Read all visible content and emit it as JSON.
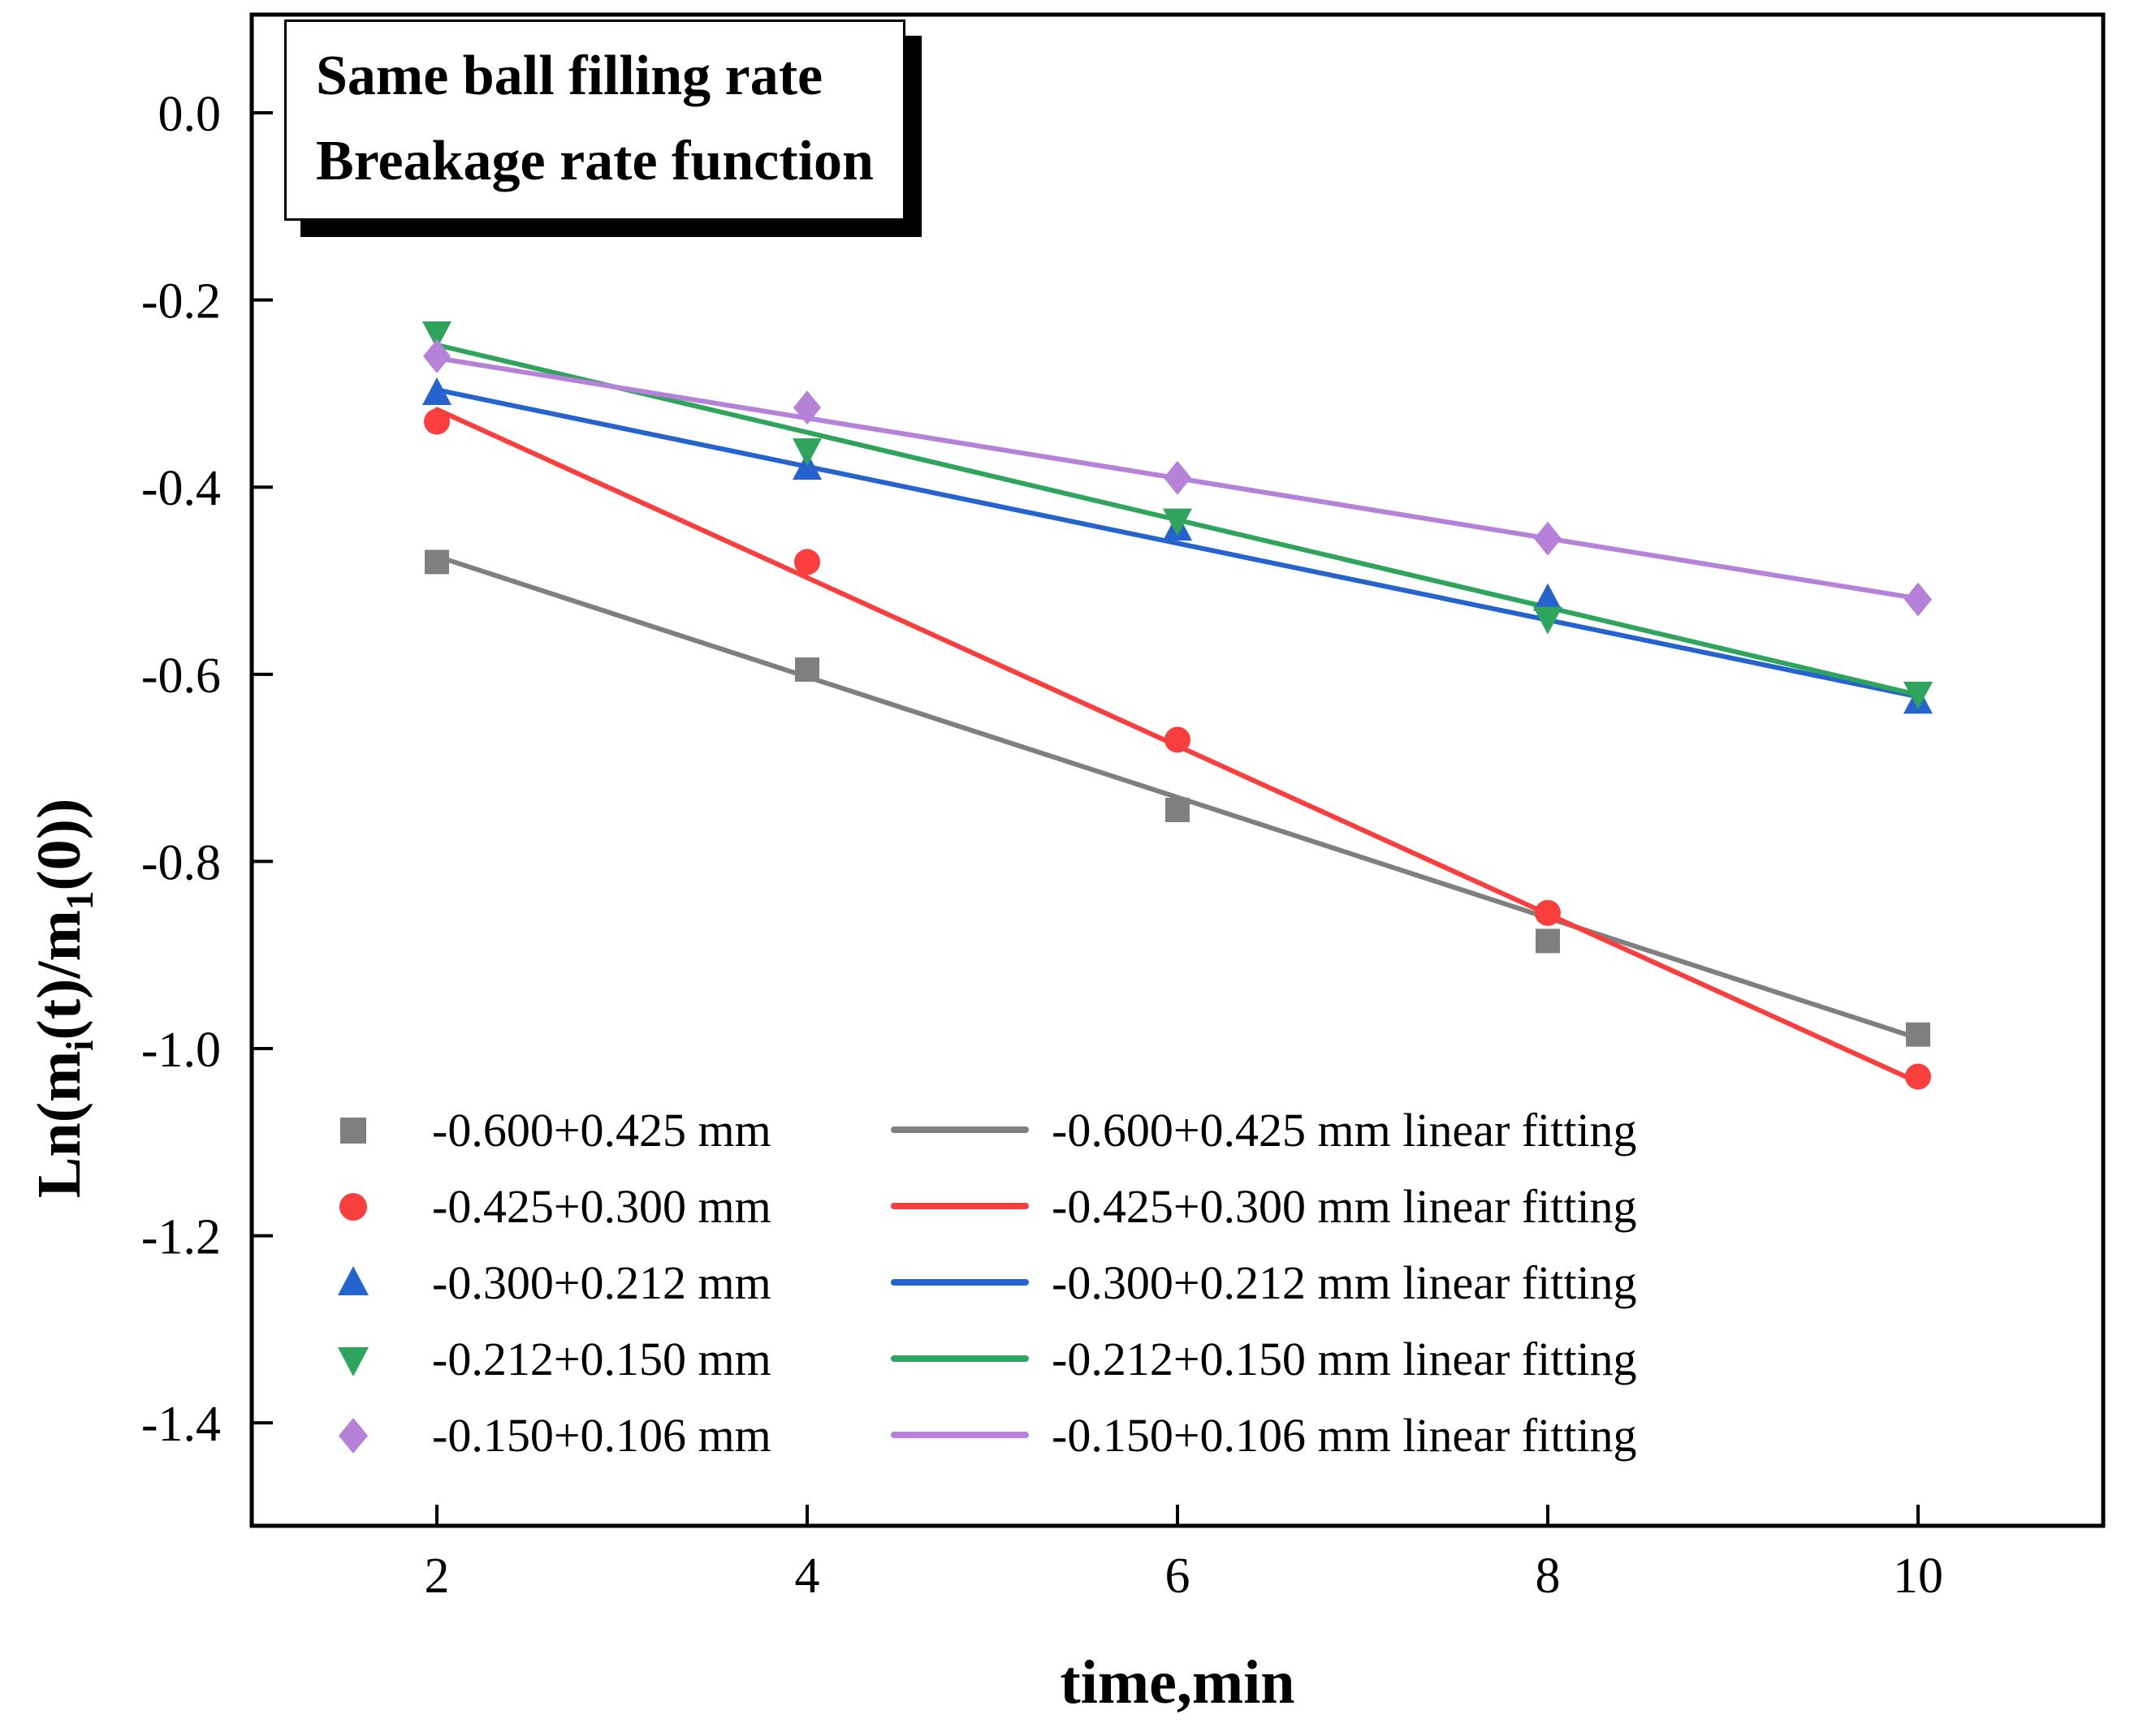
{
  "title_box": {
    "line1": "Same ball filling rate",
    "line2": "Breakage rate function"
  },
  "axes": {
    "x_label": "time,min",
    "y_label_parts": {
      "p1": "Ln(m",
      "s1": "i",
      "p2": "(t)/m",
      "s2": "1",
      "p3": "(0))"
    },
    "xlim": [
      1,
      11
    ],
    "ylim": [
      -1.51,
      0.105
    ],
    "x_ticks": [
      {
        "value": 2,
        "label": "2"
      },
      {
        "value": 4,
        "label": "4"
      },
      {
        "value": 6,
        "label": "6"
      },
      {
        "value": 8,
        "label": "8"
      },
      {
        "value": 10,
        "label": "10"
      }
    ],
    "y_ticks": [
      {
        "value": 0.0,
        "label": "0.0"
      },
      {
        "value": -0.2,
        "label": "-0.2"
      },
      {
        "value": -0.4,
        "label": "-0.4"
      },
      {
        "value": -0.6,
        "label": "-0.6"
      },
      {
        "value": -0.8,
        "label": "-0.8"
      },
      {
        "value": -1.0,
        "label": "-1.0"
      },
      {
        "value": -1.2,
        "label": "-1.2"
      },
      {
        "value": -1.4,
        "label": "-1.4"
      }
    ]
  },
  "chart_data": {
    "type": "scatter",
    "title": "Same ball filling rate Breakage rate function",
    "xlabel": "time,min",
    "ylabel": "Ln(m_i(t)/m_1(0))",
    "x": [
      2,
      4,
      6,
      8,
      10
    ],
    "xlim": [
      1,
      11
    ],
    "ylim": [
      -1.51,
      0.105
    ],
    "grid": false,
    "legend_position": "lower-left",
    "series": [
      {
        "name": "-0.600+0.425 mm",
        "marker": "square",
        "color": "#7f7f7f",
        "values": [
          -0.48,
          -0.595,
          -0.745,
          -0.885,
          -0.985
        ],
        "fit": {
          "x": [
            2,
            10
          ],
          "y": [
            -0.474,
            -0.989
          ]
        },
        "fit_name": "-0.600+0.425 mm linear fitting"
      },
      {
        "name": "-0.425+0.300 mm",
        "marker": "circle",
        "color": "#fa3e3e",
        "values": [
          -0.33,
          -0.48,
          -0.67,
          -0.855,
          -1.03
        ],
        "fit": {
          "x": [
            2,
            10
          ],
          "y": [
            -0.317,
            -1.036
          ]
        },
        "fit_name": "-0.425+0.300 mm linear fitting"
      },
      {
        "name": "-0.300+0.212 mm",
        "marker": "triangle-up",
        "color": "#2563cf",
        "values": [
          -0.3,
          -0.38,
          -0.445,
          -0.52,
          -0.63
        ],
        "fit": {
          "x": [
            2,
            10
          ],
          "y": [
            -0.296,
            -0.624
          ]
        },
        "fit_name": "-0.300+0.212 mm linear fitting"
      },
      {
        "name": "-0.212+0.150 mm",
        "marker": "triangle-down",
        "color": "#2fa45c",
        "values": [
          -0.235,
          -0.36,
          -0.435,
          -0.54,
          -0.62
        ],
        "fit": {
          "x": [
            2,
            10
          ],
          "y": [
            -0.248,
            -0.622
          ]
        },
        "fit_name": "-0.212+0.150 mm linear fitting"
      },
      {
        "name": "-0.150+0.106 mm",
        "marker": "diamond",
        "color": "#b681d9",
        "values": [
          -0.26,
          -0.315,
          -0.39,
          -0.455,
          -0.52
        ],
        "fit": {
          "x": [
            2,
            10
          ],
          "y": [
            -0.262,
            -0.519
          ]
        },
        "fit_name": "-0.150+0.106 mm linear fitting"
      }
    ]
  },
  "legend": {
    "items": [
      {
        "label": "-0.600+0.425 mm",
        "fit_label": "-0.600+0.425 mm linear fitting"
      },
      {
        "label": "-0.425+0.300 mm",
        "fit_label": "-0.425+0.300 mm linear fitting"
      },
      {
        "label": "-0.300+0.212 mm",
        "fit_label": "-0.300+0.212 mm linear fitting"
      },
      {
        "label": "-0.212+0.150 mm",
        "fit_label": "-0.212+0.150 mm linear fitting"
      },
      {
        "label": "-0.150+0.106 mm",
        "fit_label": "-0.150+0.106 mm linear fitting"
      }
    ]
  }
}
